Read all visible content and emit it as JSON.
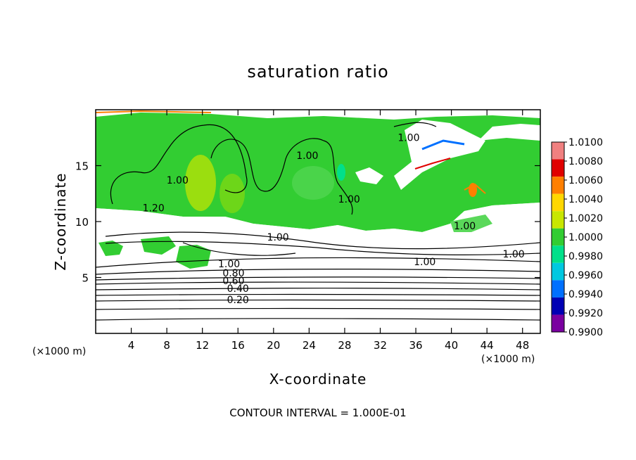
{
  "chart_data": {
    "type": "heatmap",
    "title": "saturation ratio",
    "xlabel": "X-coordinate",
    "ylabel": "Z-coordinate",
    "x_unit": "(×1000 m)",
    "x_ticks": [
      4,
      8,
      12,
      16,
      20,
      24,
      28,
      32,
      36,
      40,
      44,
      48
    ],
    "y_ticks": [
      5,
      10,
      15
    ],
    "xlim": [
      0,
      50
    ],
    "ylim": [
      0,
      20
    ],
    "note": "CONTOUR INTERVAL = 1.000E-01",
    "colorbar": {
      "labels": [
        "1.0100",
        "1.0080",
        "1.0060",
        "1.0040",
        "1.0020",
        "1.0000",
        "0.9980",
        "0.9960",
        "0.9940",
        "0.9920",
        "0.9900"
      ],
      "colors": [
        "#f08080",
        "#e00000",
        "#ff7f00",
        "#ffd700",
        "#c8e600",
        "#32cd32",
        "#00e08a",
        "#00c8e0",
        "#0070ff",
        "#0000b4",
        "#7a00a0"
      ]
    },
    "contour_labels": [
      {
        "text": "1.00",
        "x": 9.2,
        "y": 13.4
      },
      {
        "text": "1.00",
        "x": 23.8,
        "y": 15.6
      },
      {
        "text": "1.00",
        "x": 28.5,
        "y": 11.7
      },
      {
        "text": "1.00",
        "x": 35.2,
        "y": 17.2
      },
      {
        "text": "1.20",
        "x": 6.5,
        "y": 10.9
      },
      {
        "text": "1.00",
        "x": 20.5,
        "y": 8.3
      },
      {
        "text": "1.00",
        "x": 41.5,
        "y": 9.3
      },
      {
        "text": "1.00",
        "x": 37.0,
        "y": 6.1
      },
      {
        "text": "1.00",
        "x": 47.0,
        "y": 6.8
      },
      {
        "text": "1.00",
        "x": 15.0,
        "y": 5.9
      },
      {
        "text": "0.80",
        "x": 15.5,
        "y": 5.1
      },
      {
        "text": "0.60",
        "x": 15.5,
        "y": 4.4
      },
      {
        "text": "0.40",
        "x": 16.0,
        "y": 3.7
      },
      {
        "text": "0.20",
        "x": 16.0,
        "y": 2.7
      }
    ]
  },
  "labels": {
    "x_unit_left": "(×1000 m)",
    "x_unit_right": "(×1000 m)"
  }
}
